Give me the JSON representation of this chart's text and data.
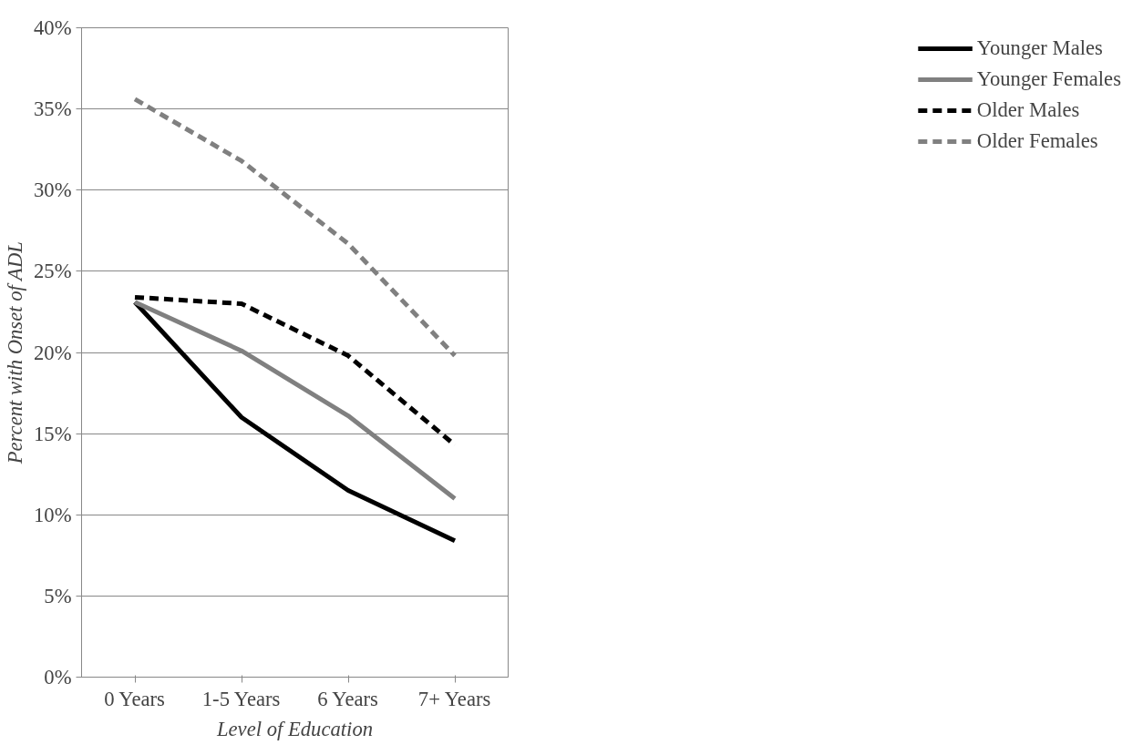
{
  "chart_data": {
    "type": "line",
    "xlabel": "Level of Education",
    "ylabel": "Percent with Onset of ADL",
    "categories": [
      "0 Years",
      "1-5 Years",
      "6 Years",
      "7+ Years"
    ],
    "series": [
      {
        "name": "Younger Males",
        "color": "#000000",
        "line_style": "solid",
        "values": [
          23.1,
          16.0,
          11.5,
          8.4
        ]
      },
      {
        "name": "Younger Females",
        "color": "#808080",
        "line_style": "solid",
        "values": [
          23.1,
          20.1,
          16.1,
          11.0
        ]
      },
      {
        "name": "Older Males",
        "color": "#000000",
        "line_style": "dashed",
        "values": [
          23.4,
          23.0,
          19.8,
          14.3
        ]
      },
      {
        "name": "Older Females",
        "color": "#808080",
        "line_style": "dashed",
        "values": [
          35.6,
          31.8,
          26.7,
          19.8
        ]
      }
    ],
    "ylim": [
      0,
      40
    ],
    "yticks": [
      {
        "value": 0,
        "label": "0%"
      },
      {
        "value": 5,
        "label": "5%"
      },
      {
        "value": 10,
        "label": "10%"
      },
      {
        "value": 15,
        "label": "15%"
      },
      {
        "value": 20,
        "label": "20%"
      },
      {
        "value": 25,
        "label": "25%"
      },
      {
        "value": 30,
        "label": "30%"
      },
      {
        "value": 35,
        "label": "35%"
      },
      {
        "value": 40,
        "label": "40%"
      }
    ],
    "grid": "y",
    "legend": "right",
    "marker": "none"
  }
}
